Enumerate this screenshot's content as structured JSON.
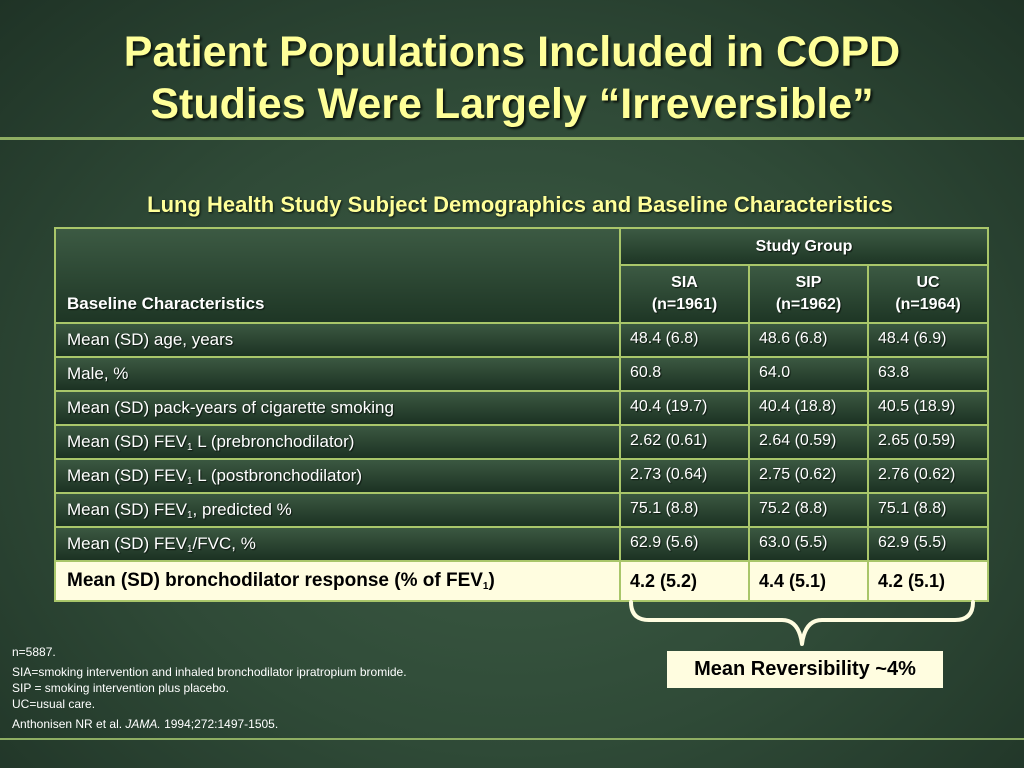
{
  "slide": {
    "title_line1": "Patient Populations Included in COPD",
    "title_line2": "Studies Were Largely “Irreversible”",
    "subtitle": "Lung Health Study Subject Demographics and Baseline Characteristics"
  },
  "table": {
    "header_label": "Baseline Characteristics",
    "group_label": "Study Group",
    "arms": [
      {
        "name": "SIA",
        "n": "(n=1961)"
      },
      {
        "name": "SIP",
        "n": "(n=1962)"
      },
      {
        "name": "UC",
        "n": "(n=1964)"
      }
    ],
    "rows": [
      {
        "label": "Mean (SD) age, years",
        "values": [
          "48.4 (6.8)",
          "48.6 (6.8)",
          "48.4 (6.9)"
        ]
      },
      {
        "label": "Male, %",
        "values": [
          "60.8",
          "64.0",
          "63.8"
        ]
      },
      {
        "label": "Mean (SD) pack-years of cigarette smoking",
        "values": [
          "40.4 (19.7)",
          "40.4 (18.8)",
          "40.5 (18.9)"
        ]
      },
      {
        "label_pre": "Mean (SD) FEV",
        "label_sub": "1",
        "label_post": " L (prebronchodilator)",
        "values": [
          "2.62 (0.61)",
          "2.64 (0.59)",
          "2.65 (0.59)"
        ]
      },
      {
        "label_pre": "Mean (SD) FEV",
        "label_sub": "1",
        "label_post": " L (postbronchodilator)",
        "values": [
          "2.73 (0.64)",
          "2.75 (0.62)",
          "2.76 (0.62)"
        ]
      },
      {
        "label_pre": "Mean (SD) FEV",
        "label_sub": "1",
        "label_post": ", predicted %",
        "values": [
          "75.1 (8.8)",
          "75.2 (8.8)",
          "75.1 (8.8)"
        ]
      },
      {
        "label_pre": "Mean (SD) FEV",
        "label_sub": "1",
        "label_post": "/FVC, %",
        "values": [
          "62.9 (5.6)",
          "63.0 (5.5)",
          "62.9 (5.5)"
        ]
      }
    ],
    "highlight_row": {
      "label_pre": "Mean (SD) bronchodilator response (% of FEV",
      "label_sub": "1",
      "label_post": ")",
      "values": [
        "4.2 (5.2)",
        "4.4 (5.1)",
        "4.2 (5.1)"
      ]
    }
  },
  "callout": "Mean Reversibility ~4%",
  "footnotes": {
    "n": "n=5887.",
    "sia": "SIA=smoking intervention and inhaled bronchodilator ipratropium bromide.",
    "sip": "SIP = smoking intervention plus placebo.",
    "uc": "UC=usual care.",
    "cite_authors": "Anthonisen NR et al. ",
    "cite_journal": "JAMA.",
    "cite_rest": " 1994;272:1497-1505."
  },
  "colors": {
    "title": "#ffff99",
    "rule": "#8fae63",
    "table_border": "#a9c66a",
    "highlight_bg": "#fffde0",
    "background": "#2f4a37"
  }
}
